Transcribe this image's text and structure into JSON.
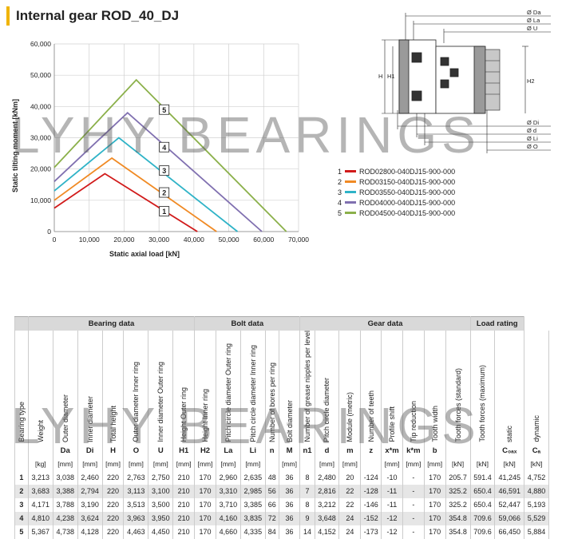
{
  "title": "Internal gear ROD_40_DJ",
  "watermark": "LYHY BEARINGS",
  "chart_data": {
    "type": "line",
    "xlabel": "Static axial load [kN]",
    "ylabel": "Static tilting moment [kNm]",
    "xlim": [
      0,
      70000
    ],
    "ylim": [
      0,
      60000
    ],
    "x_ticks": [
      "0",
      "10,000",
      "20,000",
      "30,000",
      "40,000",
      "50,000",
      "60,000",
      "70,000"
    ],
    "y_ticks": [
      "0",
      "10,000",
      "20,000",
      "30,000",
      "40,000",
      "50,000",
      "60,000"
    ],
    "series": [
      {
        "name": "ROD02800-040DJ15-900-000",
        "label": "1",
        "color": "#d11a1a",
        "points": [
          [
            0,
            7500
          ],
          [
            14500,
            18500
          ],
          [
            41000,
            0
          ]
        ]
      },
      {
        "name": "ROD03150-040DJ15-900-000",
        "label": "2",
        "color": "#f08a24",
        "points": [
          [
            0,
            10000
          ],
          [
            16500,
            23500
          ],
          [
            46500,
            0
          ]
        ]
      },
      {
        "name": "ROD03550-040DJ15-900-000",
        "label": "3",
        "color": "#2fb3c7",
        "points": [
          [
            0,
            13000
          ],
          [
            18500,
            30000
          ],
          [
            52500,
            0
          ]
        ]
      },
      {
        "name": "ROD04000-040DJ15-900-000",
        "label": "4",
        "color": "#8070b0",
        "points": [
          [
            0,
            16000
          ],
          [
            21000,
            38000
          ],
          [
            59500,
            0
          ]
        ]
      },
      {
        "name": "ROD04500-040DJ15-900-000",
        "label": "5",
        "color": "#8bb04a",
        "points": [
          [
            0,
            20500
          ],
          [
            23500,
            48500
          ],
          [
            66500,
            0
          ]
        ]
      }
    ],
    "curve_labels": [
      {
        "text": "1",
        "x": 31500,
        "y": 6500
      },
      {
        "text": "2",
        "x": 31500,
        "y": 12500
      },
      {
        "text": "3",
        "x": 31500,
        "y": 19500
      },
      {
        "text": "4",
        "x": 31500,
        "y": 27000
      },
      {
        "text": "5",
        "x": 31500,
        "y": 39000
      }
    ]
  },
  "drawing": {
    "top_dims": [
      "Ø Da",
      "Ø La",
      "Ø U"
    ],
    "bottom_dims": [
      "Ø Di",
      "Ø d",
      "Ø Li",
      "Ø O"
    ],
    "side_dims": [
      "H",
      "H1",
      "H2"
    ]
  },
  "table": {
    "groups": [
      {
        "label": "",
        "span": 1
      },
      {
        "label": "Bearing data",
        "span": 7
      },
      {
        "label": "Bolt data",
        "span": 5
      },
      {
        "label": "Gear data",
        "span": 8
      },
      {
        "label": "Load rating",
        "span": 2
      }
    ],
    "headers": [
      "Bearing type",
      "Weight",
      "Outer diameter",
      "Inner diameter",
      "Total height",
      "Outer diameter Inner ring",
      "Inner diameter Outer ring",
      "Height Outer ring",
      "Height Inner ring",
      "Pitch circle diameter Outer ring",
      "Pitch circle diameter Inner ring",
      "Number of bores per ring",
      "Bolt diameter",
      "Number of grease nipples per level",
      "Pitch circle diameter",
      "Module (metric)",
      "Number of teeth",
      "Profile shift",
      "Tip reduction",
      "Tooth width",
      "Tooth forces (standard)",
      "Tooth forces (maximum)",
      "static",
      "dynamic"
    ],
    "symbols": [
      "",
      "",
      "Da",
      "Di",
      "H",
      "O",
      "U",
      "H1",
      "H2",
      "La",
      "Li",
      "n",
      "M",
      "n1",
      "d",
      "m",
      "z",
      "x*m",
      "k*m",
      "b",
      "",
      "",
      "C₀ₐₓ",
      "Cₐ"
    ],
    "units": [
      "",
      "[kg]",
      "[mm]",
      "[mm]",
      "[mm]",
      "[mm]",
      "[mm]",
      "[mm]",
      "[mm]",
      "[mm]",
      "[mm]",
      "",
      "[mm]",
      "",
      "[mm]",
      "[mm]",
      "",
      "[mm]",
      "[mm]",
      "[mm]",
      "[kN]",
      "[kN]",
      "[kN]",
      "[kN]"
    ],
    "rows": [
      [
        "1",
        "3,213",
        "3,038",
        "2,460",
        "220",
        "2,763",
        "2,750",
        "210",
        "170",
        "2,960",
        "2,635",
        "48",
        "36",
        "8",
        "2,480",
        "20",
        "-124",
        "-10",
        "-",
        "170",
        "205.7",
        "591.4",
        "41,245",
        "4,752"
      ],
      [
        "2",
        "3,683",
        "3,388",
        "2,794",
        "220",
        "3,113",
        "3,100",
        "210",
        "170",
        "3,310",
        "2,985",
        "56",
        "36",
        "7",
        "2,816",
        "22",
        "-128",
        "-11",
        "-",
        "170",
        "325.2",
        "650.4",
        "46,591",
        "4,880"
      ],
      [
        "3",
        "4,171",
        "3,788",
        "3,190",
        "220",
        "3,513",
        "3,500",
        "210",
        "170",
        "3,710",
        "3,385",
        "66",
        "36",
        "8",
        "3,212",
        "22",
        "-146",
        "-11",
        "-",
        "170",
        "325.2",
        "650.4",
        "52,447",
        "5,193"
      ],
      [
        "4",
        "4,810",
        "4,238",
        "3,624",
        "220",
        "3,963",
        "3,950",
        "210",
        "170",
        "4,160",
        "3,835",
        "72",
        "36",
        "9",
        "3,648",
        "24",
        "-152",
        "-12",
        "-",
        "170",
        "354.8",
        "709.6",
        "59,066",
        "5,529"
      ],
      [
        "5",
        "5,367",
        "4,738",
        "4,128",
        "220",
        "4,463",
        "4,450",
        "210",
        "170",
        "4,660",
        "4,335",
        "84",
        "36",
        "14",
        "4,152",
        "24",
        "-173",
        "-12",
        "-",
        "170",
        "354.8",
        "709.6",
        "66,450",
        "5,884"
      ]
    ]
  }
}
